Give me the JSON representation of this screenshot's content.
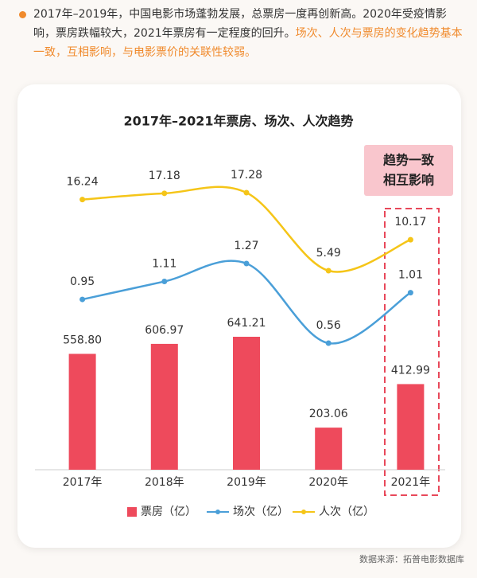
{
  "intro": {
    "text": "2017年–2019年，中国电影市场蓬勃发展，总票房一度再创新高。2020年受疫情影响，票房跌幅较大，2021年票房有一定程度的回升。",
    "highlight": "场次、人次与票房的变化趋势基本一致，互相影响，与电影票价的关联性较弱。"
  },
  "chart_data": {
    "type": "bar",
    "title": "2017年–2021年票房、场次、人次趋势",
    "categories": [
      "2017年",
      "2018年",
      "2019年",
      "2020年",
      "2021年"
    ],
    "series": [
      {
        "name": "票房（亿）",
        "type": "bar",
        "color": "#ee4a5c",
        "values": [
          558.8,
          606.97,
          641.21,
          203.06,
          412.99
        ],
        "value_labels": [
          "558.80",
          "606.97",
          "641.21",
          "203.06",
          "412.99"
        ]
      },
      {
        "name": "场次（亿）",
        "type": "line",
        "color": "#4a9fd8",
        "values": [
          0.95,
          1.11,
          1.27,
          0.56,
          1.01
        ]
      },
      {
        "name": "人次（亿）",
        "type": "line",
        "color": "#f5c518",
        "values": [
          16.24,
          17.18,
          17.28,
          5.49,
          10.17
        ]
      }
    ],
    "annotation": [
      "趋势一致",
      "相互影响"
    ]
  },
  "source": "数据来源：拓普电影数据库"
}
